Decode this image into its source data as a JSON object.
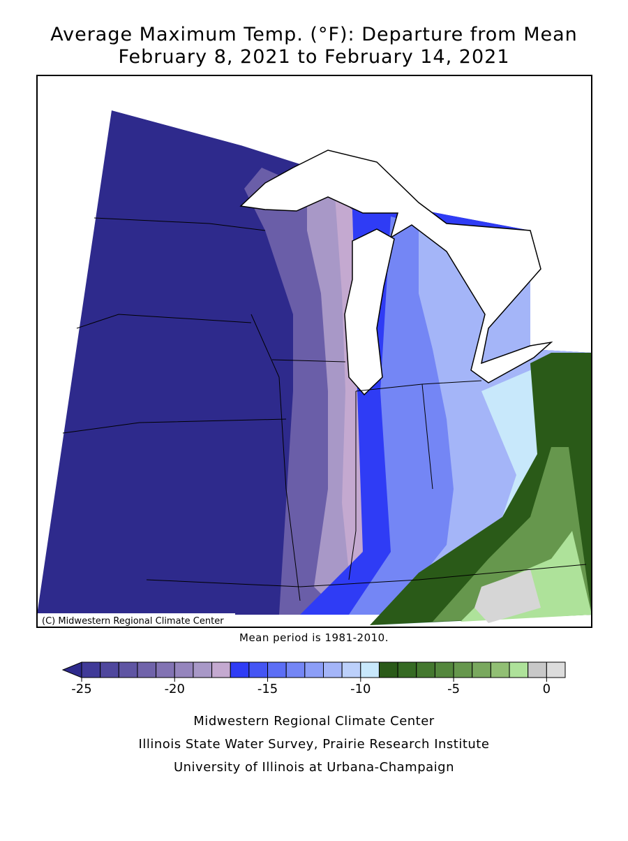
{
  "header": {
    "title": "Average Maximum Temp. (°F): Departure from Mean",
    "subtitle": "February 8, 2021 to February 14, 2021"
  },
  "map": {
    "credit": "(C) Midwestern Regional Climate Center",
    "note": "Mean period is 1981-2010."
  },
  "colorbar": {
    "lim": [
      -25,
      1
    ],
    "ticks": [
      -25,
      -20,
      -15,
      -10,
      -5,
      0
    ],
    "bins": [
      -25,
      -24,
      -23,
      -22,
      -21,
      -20,
      -19,
      -18,
      -17,
      -16,
      -15,
      -14,
      -13,
      -12,
      -11,
      -10,
      -9,
      -8,
      -7,
      -6,
      -5,
      -4,
      -3,
      -2,
      -1,
      0,
      1
    ],
    "under_color": "#2e2a8c",
    "colors": [
      "#403a98",
      "#4f479d",
      "#5f55a3",
      "#7063aa",
      "#8273b3",
      "#9585bd",
      "#a898c7",
      "#c4a9d0",
      "#2f3cf5",
      "#4455f4",
      "#5c6ef5",
      "#7486f5",
      "#8c9ef7",
      "#a4b5f8",
      "#bcd0fb",
      "#c8e8fb",
      "#2a5a18",
      "#356a23",
      "#44782f",
      "#54873d",
      "#66974d",
      "#79a85e",
      "#91bf74",
      "#aee29a",
      "#c8c8c8",
      "#dcdcdc"
    ]
  },
  "footer": {
    "lines": [
      "Midwestern Regional Climate Center",
      "Illinois State Water Survey, Prairie Research Institute",
      "University of Illinois at Urbana-Champaign"
    ]
  }
}
